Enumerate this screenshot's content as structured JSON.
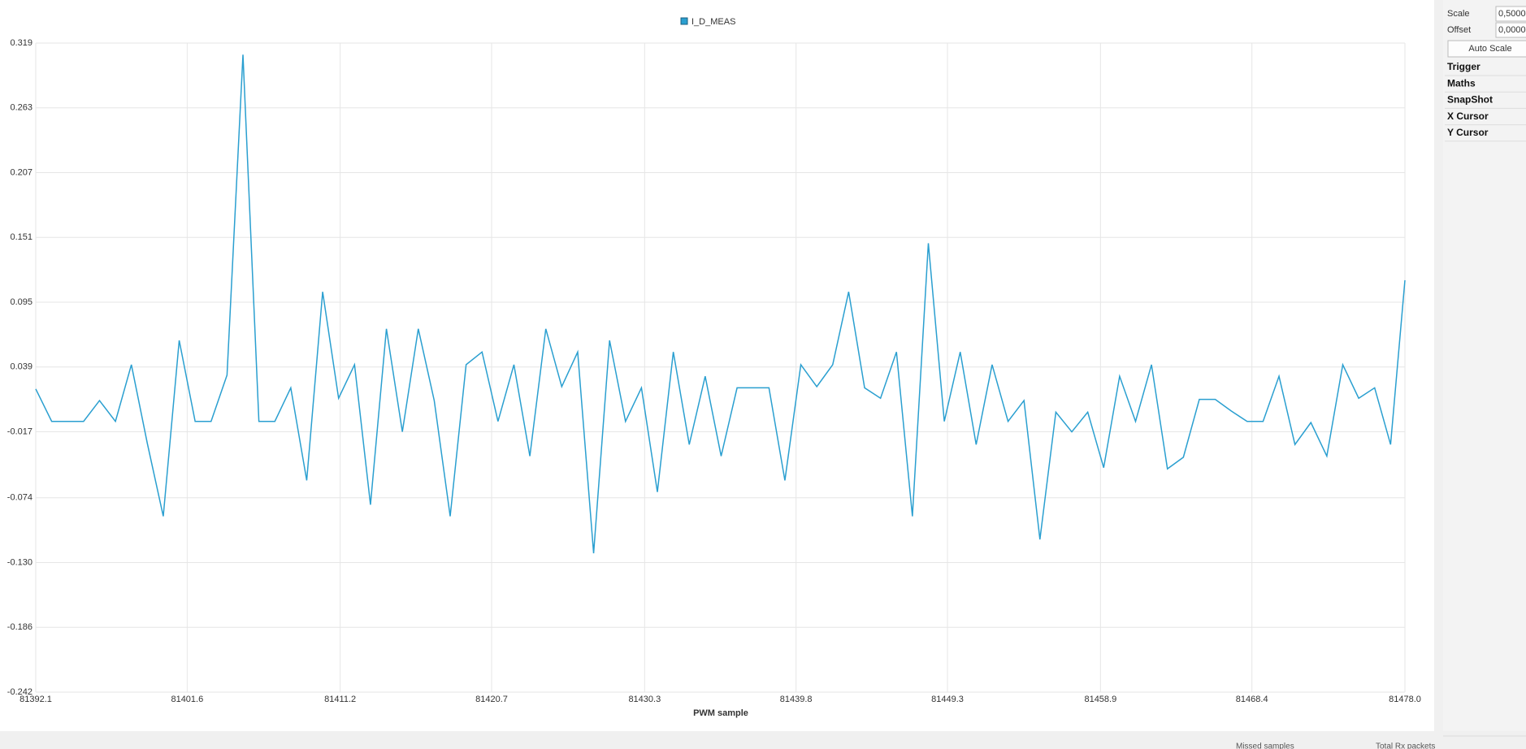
{
  "chart_data": {
    "type": "line",
    "legend": "I_D_MEAS",
    "x_label": "PWM sample",
    "series": [
      {
        "name": "I_D_MEAS",
        "color": "#2a9fd0",
        "x": [
          81392.1,
          81393.1,
          81394.1,
          81395.1,
          81396.1,
          81397.1,
          81398.1,
          81399.1,
          81400.1,
          81401.1,
          81402.1,
          81403.1,
          81404.1,
          81405.1,
          81406.1,
          81407.1,
          81408.1,
          81409.1,
          81410.1,
          81411.1,
          81412.1,
          81413.1,
          81414.1,
          81415.1,
          81416.1,
          81417.1,
          81418.1,
          81419.1,
          81420.1,
          81421.1,
          81422.1,
          81423.1,
          81424.1,
          81425.1,
          81426.1,
          81427.1,
          81428.1,
          81429.1,
          81430.1,
          81431.1,
          81432.1,
          81433.1,
          81434.1,
          81435.1,
          81436.1,
          81437.1,
          81438.1,
          81439.1,
          81440.1,
          81441.1,
          81442.1,
          81443.1,
          81444.1,
          81445.1,
          81446.1,
          81447.1,
          81448.1,
          81449.1,
          81450.1,
          81451.1,
          81452.1,
          81453.1,
          81454.1,
          81455.1,
          81456.1,
          81457.1,
          81458.1,
          81459.1,
          81460.1,
          81461.1,
          81462.1,
          81463.1,
          81464.1,
          81465.1,
          81466.1,
          81467.1,
          81468.1,
          81469.1,
          81470.1,
          81471.1,
          81472.1,
          81473.1,
          81474.1,
          81475.1,
          81476.1,
          81477.1,
          81478.0
        ],
        "values": [
          0.02,
          -0.008,
          -0.008,
          -0.008,
          0.01,
          -0.008,
          0.041,
          -0.027,
          -0.09,
          0.062,
          -0.008,
          -0.008,
          0.032,
          0.309,
          -0.008,
          -0.008,
          0.021,
          -0.059,
          0.104,
          0.012,
          0.041,
          -0.08,
          0.072,
          -0.017,
          0.072,
          0.01,
          -0.09,
          0.041,
          0.052,
          -0.008,
          0.041,
          -0.038,
          0.072,
          0.022,
          0.052,
          -0.122,
          0.062,
          -0.008,
          0.021,
          -0.069,
          0.052,
          -0.028,
          0.031,
          -0.038,
          0.021,
          0.021,
          0.021,
          -0.059,
          0.041,
          0.022,
          0.041,
          0.104,
          0.021,
          0.012,
          0.052,
          -0.09,
          0.146,
          -0.008,
          0.052,
          -0.028,
          0.041,
          -0.008,
          0.01,
          -0.11,
          0.0,
          -0.017,
          0.0,
          -0.048,
          0.031,
          -0.008,
          0.041,
          -0.049,
          -0.039,
          0.011,
          0.011,
          0.001,
          -0.008,
          -0.008,
          0.031,
          -0.028,
          -0.009,
          -0.038,
          0.041,
          0.012,
          0.021,
          -0.028,
          0.114
        ]
      }
    ],
    "xlim": [
      81392.1,
      81478.0
    ],
    "xticks": [
      81392.1,
      81401.6,
      81411.2,
      81420.7,
      81430.3,
      81439.8,
      81449.3,
      81458.9,
      81468.4,
      {
        "value": 81478.0,
        "label": "81478.0"
      }
    ],
    "ylim": [
      -0.242,
      0.319
    ],
    "yticks": [
      0.319,
      0.263,
      0.207,
      0.151,
      0.095,
      0.039,
      -0.017,
      -0.074,
      {
        "value": -0.13,
        "label": "-0.130"
      },
      -0.186,
      -0.242
    ],
    "grid": true
  },
  "panel": {
    "scale_label": "Scale",
    "scale_value": "0,5000",
    "offset_label": "Offset",
    "offset_value": "0,0000",
    "button": "Auto Scale",
    "sections": [
      "Trigger",
      "Maths",
      "SnapShot",
      "X Cursor",
      "Y Cursor"
    ]
  },
  "status": {
    "missed": "Missed samples",
    "total": "Total Rx packets"
  }
}
